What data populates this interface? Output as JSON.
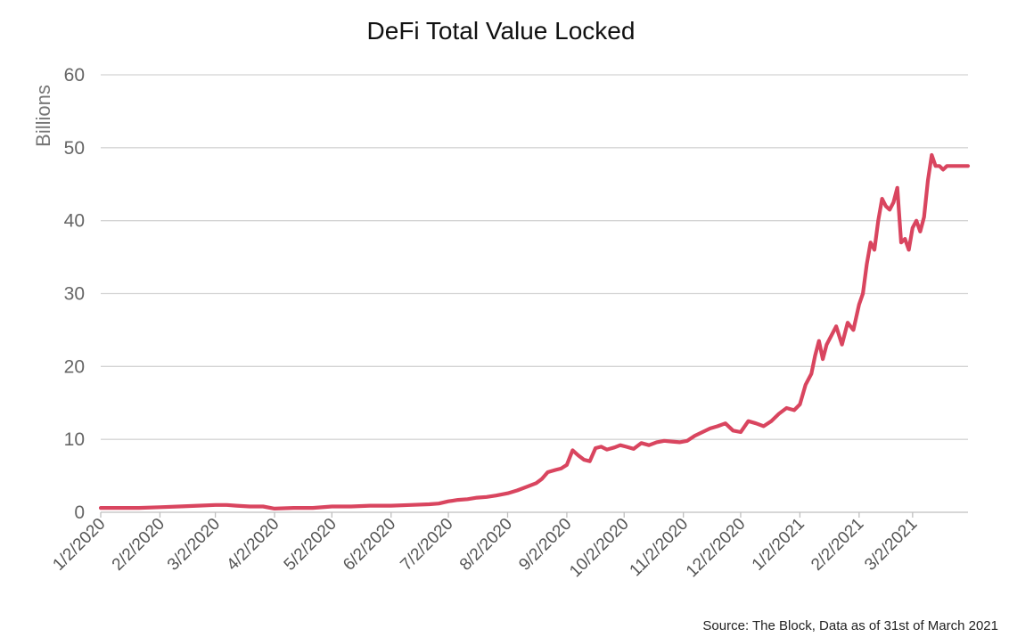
{
  "chart_data": {
    "type": "line",
    "title": "DeFi Total Value Locked",
    "ylabel": "Billions",
    "xlabel": "",
    "ylim": [
      0,
      60
    ],
    "yticks": [
      0,
      10,
      20,
      30,
      40,
      50,
      60
    ],
    "xlim": [
      "2020-01-02",
      "2021-03-31"
    ],
    "x_tick_labels": [
      {
        "date": "2020-01-02",
        "label": "1/2/2020"
      },
      {
        "date": "2020-02-02",
        "label": "2/2/2020"
      },
      {
        "date": "2020-03-02",
        "label": "3/2/2020"
      },
      {
        "date": "2020-04-02",
        "label": "4/2/2020"
      },
      {
        "date": "2020-05-02",
        "label": "5/2/2020"
      },
      {
        "date": "2020-06-02",
        "label": "6/2/2020"
      },
      {
        "date": "2020-07-02",
        "label": "7/2/2020"
      },
      {
        "date": "2020-08-02",
        "label": "8/2/2020"
      },
      {
        "date": "2020-09-02",
        "label": "9/2/2020"
      },
      {
        "date": "2020-10-02",
        "label": "10/2/2020"
      },
      {
        "date": "2020-11-02",
        "label": "11/2/2020"
      },
      {
        "date": "2020-12-02",
        "label": "12/2/2020"
      },
      {
        "date": "2021-01-02",
        "label": "1/2/2021"
      },
      {
        "date": "2021-02-02",
        "label": "2/2/2021"
      },
      {
        "date": "2021-03-02",
        "label": "3/2/2021"
      }
    ],
    "grid": true,
    "line_color": "#d9455f",
    "series": [
      {
        "x": [
          "2020-01-02",
          "2020-01-12",
          "2020-01-22",
          "2020-02-02",
          "2020-02-12",
          "2020-02-22",
          "2020-03-02",
          "2020-03-08",
          "2020-03-13",
          "2020-03-20",
          "2020-03-27",
          "2020-04-02",
          "2020-04-12",
          "2020-04-22",
          "2020-05-02",
          "2020-05-12",
          "2020-05-22",
          "2020-06-02",
          "2020-06-12",
          "2020-06-22",
          "2020-06-27",
          "2020-07-02",
          "2020-07-07",
          "2020-07-12",
          "2020-07-17",
          "2020-07-22",
          "2020-07-27",
          "2020-08-02",
          "2020-08-07",
          "2020-08-12",
          "2020-08-17",
          "2020-08-20",
          "2020-08-23",
          "2020-08-27",
          "2020-08-30",
          "2020-09-02",
          "2020-09-05",
          "2020-09-08",
          "2020-09-11",
          "2020-09-14",
          "2020-09-17",
          "2020-09-20",
          "2020-09-23",
          "2020-09-27",
          "2020-09-30",
          "2020-10-03",
          "2020-10-07",
          "2020-10-11",
          "2020-10-15",
          "2020-10-19",
          "2020-10-23",
          "2020-10-27",
          "2020-10-31",
          "2020-11-04",
          "2020-11-08",
          "2020-11-12",
          "2020-11-16",
          "2020-11-20",
          "2020-11-24",
          "2020-11-28",
          "2020-12-02",
          "2020-12-06",
          "2020-12-10",
          "2020-12-14",
          "2020-12-18",
          "2020-12-22",
          "2020-12-26",
          "2020-12-30",
          "2021-01-02",
          "2021-01-05",
          "2021-01-08",
          "2021-01-10",
          "2021-01-12",
          "2021-01-14",
          "2021-01-16",
          "2021-01-18",
          "2021-01-21",
          "2021-01-24",
          "2021-01-27",
          "2021-01-30",
          "2021-02-02",
          "2021-02-04",
          "2021-02-06",
          "2021-02-08",
          "2021-02-10",
          "2021-02-12",
          "2021-02-14",
          "2021-02-16",
          "2021-02-18",
          "2021-02-20",
          "2021-02-22",
          "2021-02-24",
          "2021-02-26",
          "2021-02-28",
          "2021-03-02",
          "2021-03-04",
          "2021-03-06",
          "2021-03-08",
          "2021-03-10",
          "2021-03-12",
          "2021-03-14",
          "2021-03-16",
          "2021-03-18",
          "2021-03-20",
          "2021-03-22",
          "2021-03-24",
          "2021-03-26",
          "2021-03-28",
          "2021-03-31"
        ],
        "values": [
          0.6,
          0.6,
          0.6,
          0.7,
          0.8,
          0.9,
          1.0,
          1.0,
          0.9,
          0.8,
          0.8,
          0.5,
          0.6,
          0.6,
          0.8,
          0.8,
          0.9,
          0.9,
          1.0,
          1.1,
          1.2,
          1.5,
          1.7,
          1.8,
          2.0,
          2.1,
          2.3,
          2.6,
          3.0,
          3.5,
          4.0,
          4.6,
          5.5,
          5.8,
          6.0,
          6.5,
          8.5,
          7.8,
          7.2,
          7.0,
          8.8,
          9.0,
          8.6,
          8.9,
          9.2,
          9.0,
          8.7,
          9.5,
          9.2,
          9.6,
          9.8,
          9.7,
          9.6,
          9.8,
          10.5,
          11.0,
          11.5,
          11.8,
          12.2,
          11.2,
          11.0,
          12.5,
          12.2,
          11.8,
          12.5,
          13.5,
          14.3,
          14.0,
          14.8,
          17.5,
          19.0,
          21.5,
          23.5,
          21.0,
          23.0,
          24.0,
          25.5,
          23.0,
          26.0,
          25.0,
          28.5,
          30.0,
          34.0,
          37.0,
          36.0,
          40.0,
          43.0,
          42.0,
          41.5,
          42.5,
          44.5,
          37.0,
          37.5,
          36.0,
          39.0,
          40.0,
          38.5,
          40.5,
          45.5,
          49.0,
          47.5,
          47.5,
          47.0,
          47.5,
          47.5,
          47.5,
          47.5,
          47.5,
          47.5
        ]
      }
    ]
  },
  "source_note": "Source: The Block, Data as of 31st of March 2021"
}
